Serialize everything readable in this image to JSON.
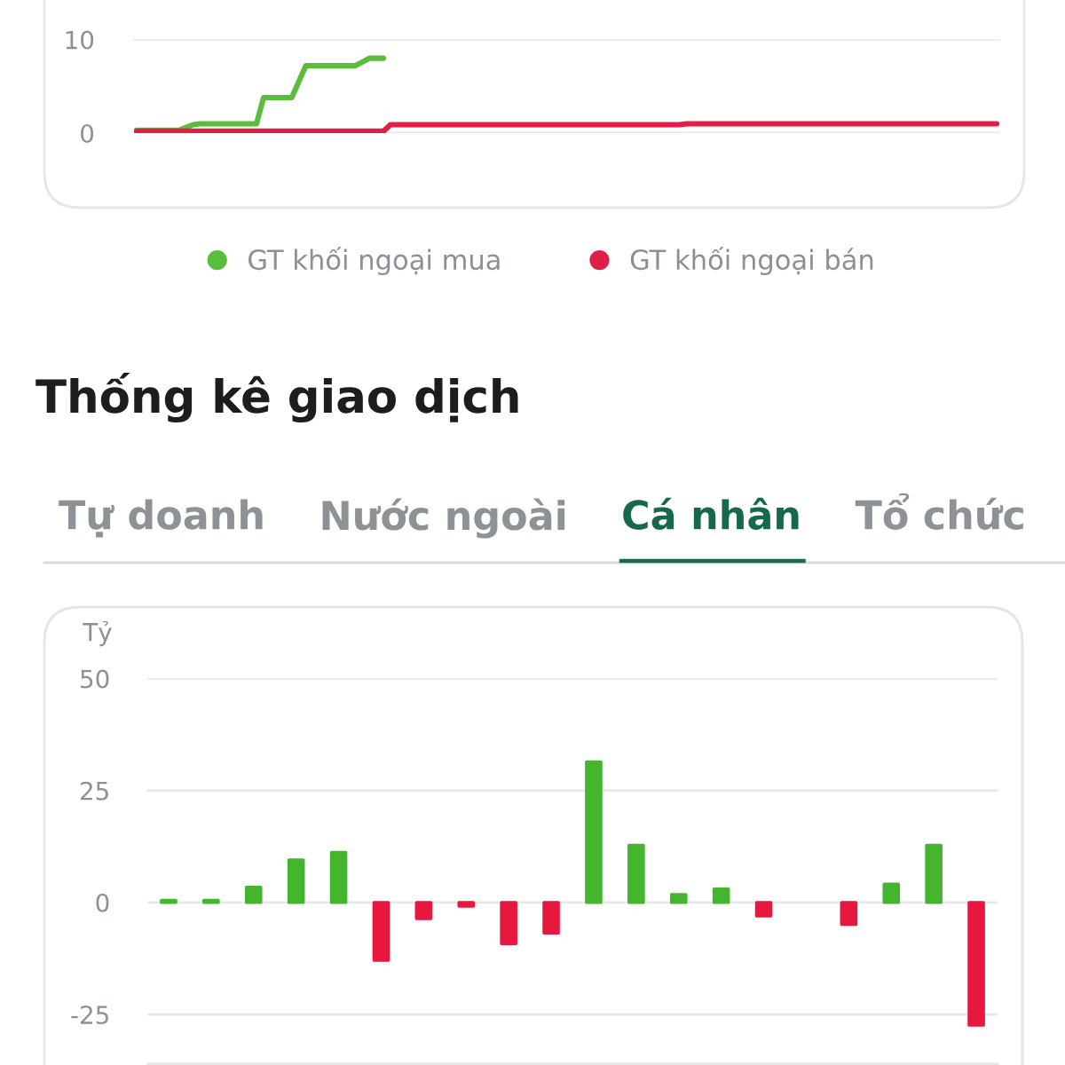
{
  "chart_data": [
    {
      "type": "line",
      "categories": [
        null,
        null,
        null,
        null,
        null,
        null,
        null,
        null,
        null,
        null,
        null,
        null,
        null,
        null,
        null,
        null,
        null,
        null,
        null,
        null,
        null,
        null,
        null,
        null,
        null,
        null,
        null,
        null,
        null,
        null,
        null,
        null,
        null,
        null,
        null,
        null,
        null,
        null,
        null,
        null,
        null,
        null,
        null,
        null,
        null,
        null,
        null,
        null,
        null,
        null,
        null,
        null,
        null,
        null,
        null,
        null,
        null,
        null,
        null,
        null,
        null,
        null,
        null,
        null,
        null,
        null,
        null,
        null,
        null,
        null,
        null,
        null,
        null,
        null,
        null,
        null,
        null,
        null,
        null,
        null,
        null,
        null,
        null,
        null,
        null,
        null,
        null,
        null,
        null,
        null,
        null,
        null,
        null,
        null,
        null,
        null,
        null,
        null,
        null,
        null,
        null,
        null,
        null,
        null,
        null,
        null,
        null,
        null,
        null,
        null,
        null,
        null,
        null,
        null,
        null,
        null,
        null,
        null,
        null,
        null,
        null,
        null,
        null
      ],
      "series": [
        {
          "name": "GT khối ngoại mua",
          "color": "#5bbd3c",
          "values": [
            0.3,
            0.3,
            0.3,
            0.3,
            0.3,
            0.3,
            0.3,
            0.6,
            0.9,
            1,
            1,
            1,
            1,
            1,
            1,
            1,
            1,
            1,
            3.8,
            3.8,
            3.8,
            3.8,
            3.8,
            5.5,
            7.2,
            7.2,
            7.2,
            7.2,
            7.2,
            7.2,
            7.2,
            7.2,
            7.6,
            8,
            8,
            8,
            null,
            null,
            null,
            null,
            null,
            null,
            null,
            null,
            null,
            null,
            null,
            null,
            null,
            null,
            null,
            null,
            null,
            null,
            null,
            null,
            null,
            null,
            null,
            null,
            null,
            null,
            null,
            null,
            null,
            null,
            null,
            null,
            null,
            null,
            null,
            null,
            null,
            null,
            null,
            null,
            null,
            null,
            null,
            null,
            null,
            null,
            null,
            null,
            null,
            null,
            null,
            null,
            null,
            null,
            null,
            null,
            null,
            null,
            null,
            null,
            null,
            null,
            null,
            null,
            null,
            null,
            null,
            null,
            null,
            null,
            null,
            null,
            null,
            null,
            null,
            null,
            null,
            null,
            null,
            null,
            null,
            null,
            null,
            null,
            null,
            null,
            null
          ]
        },
        {
          "name": "GT khối ngoại bán",
          "color": "#e01e48",
          "values": [
            0.2,
            0.2,
            0.2,
            0.2,
            0.2,
            0.2,
            0.2,
            0.2,
            0.2,
            0.2,
            0.2,
            0.2,
            0.2,
            0.2,
            0.2,
            0.2,
            0.2,
            0.2,
            0.2,
            0.2,
            0.2,
            0.2,
            0.2,
            0.2,
            0.2,
            0.2,
            0.2,
            0.2,
            0.2,
            0.2,
            0.2,
            0.2,
            0.2,
            0.2,
            0.2,
            0.2,
            0.9,
            0.9,
            0.9,
            0.9,
            0.9,
            0.9,
            0.9,
            0.9,
            0.9,
            0.9,
            0.9,
            0.9,
            0.9,
            0.9,
            0.9,
            0.9,
            0.9,
            0.9,
            0.9,
            0.9,
            0.9,
            0.9,
            0.9,
            0.9,
            0.9,
            0.9,
            0.9,
            0.9,
            0.9,
            0.9,
            0.9,
            0.9,
            0.9,
            0.9,
            0.9,
            0.9,
            0.9,
            0.9,
            0.9,
            0.9,
            0.9,
            0.9,
            1,
            1,
            1,
            1,
            1,
            1,
            1,
            1,
            1,
            1,
            1,
            1,
            1,
            1,
            1,
            1,
            1,
            1,
            1,
            1,
            1,
            1,
            1,
            1,
            1,
            1,
            1,
            1,
            1,
            1,
            1,
            1,
            1,
            1,
            1,
            1,
            1,
            1,
            1,
            1,
            1,
            1,
            1,
            1,
            1
          ]
        }
      ],
      "ylim": [
        0,
        10
      ],
      "yticks": [
        0,
        10
      ],
      "grid": "y",
      "legend": "bottom"
    },
    {
      "type": "bar",
      "title": "Thống kê giao dịch",
      "ylabel": "Tỷ",
      "annotations": [
        "Tự doanh",
        "Nước ngoài",
        "Cá nhân",
        "Tổ chức"
      ],
      "categories": [
        null,
        null,
        null,
        null,
        null,
        null,
        null,
        null,
        null,
        null,
        null,
        null,
        null,
        null,
        null,
        null,
        null,
        null,
        null,
        null
      ],
      "values": [
        0.5,
        0.5,
        3.4,
        9.5,
        11.2,
        -12.9,
        -3.6,
        -0.8,
        -9.2,
        -6.8,
        31.4,
        12.8,
        1.8,
        3,
        -3,
        null,
        -4.9,
        4.1,
        12.8,
        -27.4
      ],
      "colors": [
        "#45b530",
        "#45b530",
        "#45b530",
        "#45b530",
        "#45b530",
        "#e8173e",
        "#e8173e",
        "#e8173e",
        "#e8173e",
        "#e8173e",
        "#45b530",
        "#45b530",
        "#45b530",
        "#45b530",
        "#e8173e",
        null,
        "#e8173e",
        "#45b530",
        "#45b530",
        "#e8173e"
      ],
      "ylim": [
        -36,
        50
      ],
      "yticks": [
        -25,
        0,
        25,
        50
      ],
      "grid": "y"
    }
  ]
}
